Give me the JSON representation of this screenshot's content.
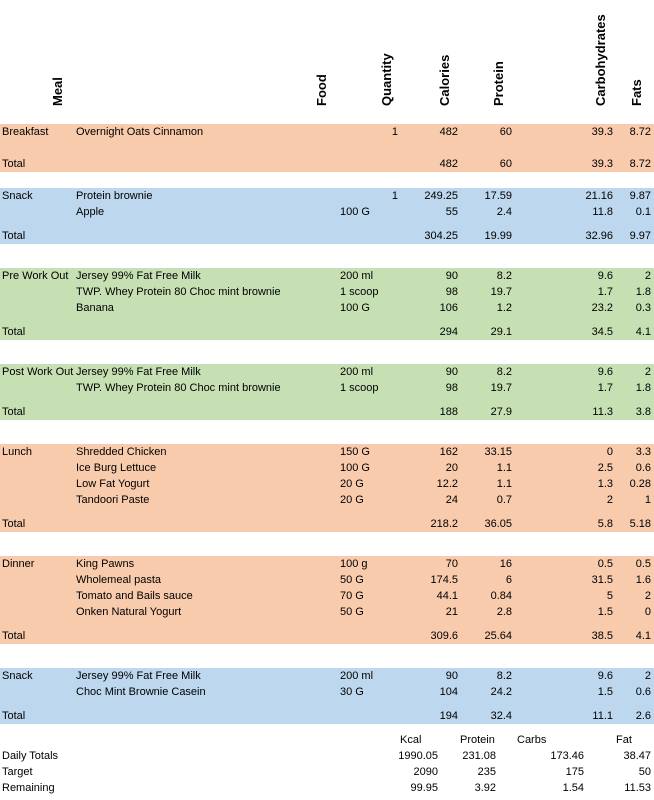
{
  "headers": {
    "meal": "Meal",
    "food": "Food",
    "quantity": "Quantity",
    "calories": "Calories",
    "protein": "Protein",
    "carbs": "Carbohydrates",
    "fats": "Fats"
  },
  "colors": {
    "orange": "#f8cbad",
    "blue": "#bdd7ee",
    "green": "#c6e0b4"
  },
  "sections": [
    {
      "meal": "Breakfast",
      "color": "orange",
      "items": [
        {
          "food": "Overnight Oats Cinnamon",
          "unit": "",
          "qty": "1",
          "cal": "482",
          "pro": "60",
          "carb": "39.3",
          "fat": "8.72"
        }
      ],
      "total": {
        "label": "Total",
        "cal": "482",
        "pro": "60",
        "carb": "39.3",
        "fat": "8.72"
      }
    },
    {
      "meal": "Snack",
      "color": "blue",
      "items": [
        {
          "food": "Protein brownie",
          "unit": "",
          "qty": "1",
          "cal": "249.25",
          "pro": "17.59",
          "carb": "21.16",
          "fat": "9.87"
        },
        {
          "food": "Apple",
          "unit": "100 G",
          "qty": "",
          "cal": "55",
          "pro": "2.4",
          "carb": "11.8",
          "fat": "0.1"
        }
      ],
      "total": {
        "label": "Total",
        "cal": "304.25",
        "pro": "19.99",
        "carb": "32.96",
        "fat": "9.97"
      }
    },
    {
      "meal": "Pre Work Out",
      "color": "green",
      "items": [
        {
          "food": "Jersey 99% Fat Free Milk",
          "unit": "200 ml",
          "qty": "",
          "cal": "90",
          "pro": "8.2",
          "carb": "9.6",
          "fat": "2"
        },
        {
          "food": "TWP. Whey Protein 80 Choc mint brownie",
          "unit": "1 scoop",
          "qty": "",
          "cal": "98",
          "pro": "19.7",
          "carb": "1.7",
          "fat": "1.8"
        },
        {
          "food": "Banana",
          "unit": "100 G",
          "qty": "",
          "cal": "106",
          "pro": "1.2",
          "carb": "23.2",
          "fat": "0.3"
        }
      ],
      "total": {
        "label": "Total",
        "cal": "294",
        "pro": "29.1",
        "carb": "34.5",
        "fat": "4.1"
      }
    },
    {
      "meal": "Post Work Out",
      "color": "green",
      "items": [
        {
          "food": "Jersey 99% Fat Free Milk",
          "unit": "200 ml",
          "qty": "",
          "cal": "90",
          "pro": "8.2",
          "carb": "9.6",
          "fat": "2"
        },
        {
          "food": "TWP. Whey Protein 80 Choc mint brownie",
          "unit": "1 scoop",
          "qty": "",
          "cal": "98",
          "pro": "19.7",
          "carb": "1.7",
          "fat": "1.8"
        }
      ],
      "total": {
        "label": "Total",
        "cal": "188",
        "pro": "27.9",
        "carb": "11.3",
        "fat": "3.8"
      }
    },
    {
      "meal": "Lunch",
      "color": "orange",
      "items": [
        {
          "food": "Shredded Chicken",
          "unit": "150 G",
          "qty": "",
          "cal": "162",
          "pro": "33.15",
          "carb": "0",
          "fat": "3.3"
        },
        {
          "food": "Ice Burg Lettuce",
          "unit": "100 G",
          "qty": "",
          "cal": "20",
          "pro": "1.1",
          "carb": "2.5",
          "fat": "0.6"
        },
        {
          "food": "Low Fat Yogurt",
          "unit": "20 G",
          "qty": "",
          "cal": "12.2",
          "pro": "1.1",
          "carb": "1.3",
          "fat": "0.28"
        },
        {
          "food": "Tandoori Paste",
          "unit": "20 G",
          "qty": "",
          "cal": "24",
          "pro": "0.7",
          "carb": "2",
          "fat": "1"
        }
      ],
      "total": {
        "label": "Total",
        "cal": "218.2",
        "pro": "36.05",
        "carb": "5.8",
        "fat": "5.18"
      }
    },
    {
      "meal": "Dinner",
      "color": "orange",
      "items": [
        {
          "food": "King Pawns",
          "unit": "100 g",
          "qty": "",
          "cal": "70",
          "pro": "16",
          "carb": "0.5",
          "fat": "0.5"
        },
        {
          "food": "Wholemeal pasta",
          "unit": "50 G",
          "qty": "",
          "cal": "174.5",
          "pro": "6",
          "carb": "31.5",
          "fat": "1.6"
        },
        {
          "food": "Tomato and Bails sauce",
          "unit": "70 G",
          "qty": "",
          "cal": "44.1",
          "pro": "0.84",
          "carb": "5",
          "fat": "2"
        },
        {
          "food": "Onken Natural Yogurt",
          "unit": "50 G",
          "qty": "",
          "cal": "21",
          "pro": "2.8",
          "carb": "1.5",
          "fat": "0"
        }
      ],
      "total": {
        "label": "Total",
        "cal": "309.6",
        "pro": "25.64",
        "carb": "38.5",
        "fat": "4.1"
      }
    },
    {
      "meal": "Snack",
      "color": "blue",
      "items": [
        {
          "food": "Jersey 99% Fat Free Milk",
          "unit": "200 ml",
          "qty": "",
          "cal": "90",
          "pro": "8.2",
          "carb": "9.6",
          "fat": "2"
        },
        {
          "food": "Choc Mint Brownie Casein",
          "unit": "30 G",
          "qty": "",
          "cal": "104",
          "pro": "24.2",
          "carb": "1.5",
          "fat": "0.6"
        }
      ],
      "total": {
        "label": "Total",
        "cal": "194",
        "pro": "32.4",
        "carb": "11.1",
        "fat": "2.6"
      }
    }
  ],
  "summary": {
    "labels": {
      "kcal": "Kcal",
      "protein": "Protein",
      "carbs": "Carbs",
      "fat": "Fat"
    },
    "rows": [
      {
        "label": "Daily Totals",
        "cal": "1990.05",
        "pro": "231.08",
        "carb": "173.46",
        "fat": "38.47"
      },
      {
        "label": "Target",
        "cal": "2090",
        "pro": "235",
        "carb": "175",
        "fat": "50"
      },
      {
        "label": "Remaining",
        "cal": "99.95",
        "pro": "3.92",
        "carb": "1.54",
        "fat": "11.53"
      }
    ]
  }
}
